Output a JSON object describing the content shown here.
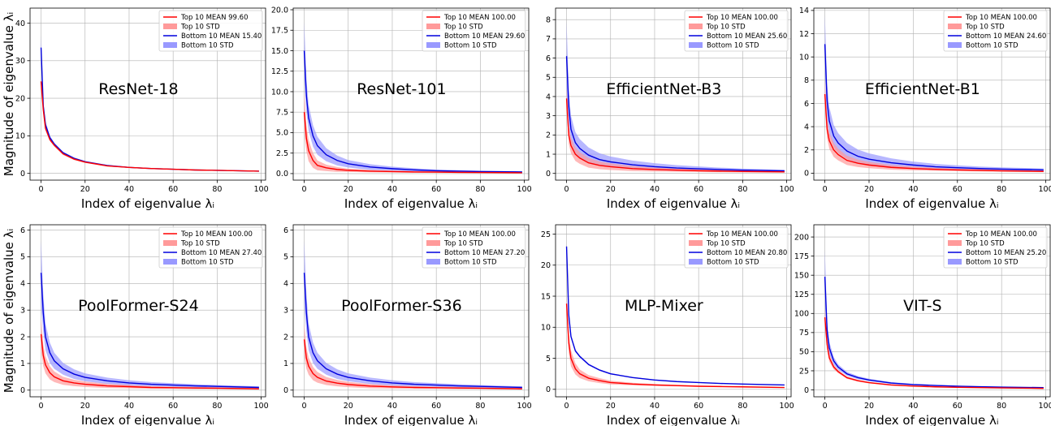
{
  "colors": {
    "top_line": "#ff0000",
    "top_band": "#ff9a9a",
    "bottom_line": "#0000dd",
    "bottom_band": "#9999ff",
    "grid": "#b0b0b0"
  },
  "shared": {
    "xlabel": "Index of eigenvalue λᵢ",
    "ylabel": "Magnitude of eigenvalue λᵢ",
    "xticks": [
      0,
      20,
      40,
      60,
      80,
      100
    ],
    "xlim": [
      -5,
      102
    ],
    "grid": true,
    "legend_position": "top-right"
  },
  "chart_data": [
    {
      "type": "line",
      "title": "ResNet-18",
      "ylim": [
        -1.8,
        44
      ],
      "yticks": [
        0,
        10,
        20,
        30,
        40
      ],
      "legend": [
        "Top 10 MEAN 99.60",
        "Top 10 STD",
        "Bottom 10 MEAN 15.40",
        "Bottom 10 STD"
      ],
      "series": [
        {
          "name": "Top 10 MEAN 99.60",
          "x": [
            0,
            1,
            2,
            4,
            6,
            10,
            15,
            20,
            30,
            40,
            50,
            60,
            70,
            80,
            99
          ],
          "values": [
            24.5,
            17,
            12,
            9,
            7.5,
            5.2,
            3.8,
            3.0,
            2.0,
            1.6,
            1.3,
            1.1,
            0.9,
            0.8,
            0.6
          ],
          "std": [
            0.8,
            0.6,
            0.5,
            0.4,
            0.35,
            0.3,
            0.25,
            0.2,
            0.15,
            0.12,
            0.1,
            0.1,
            0.08,
            0.08,
            0.06
          ]
        },
        {
          "name": "Bottom 10 MEAN 15.40",
          "x": [
            0,
            1,
            2,
            4,
            6,
            10,
            15,
            20,
            30,
            40,
            50,
            60,
            70,
            80,
            99
          ],
          "values": [
            33.5,
            18,
            13,
            9.5,
            7.8,
            5.5,
            4.0,
            3.1,
            2.1,
            1.6,
            1.3,
            1.1,
            0.9,
            0.8,
            0.6
          ],
          "std": [
            3,
            1.2,
            0.8,
            0.5,
            0.4,
            0.3,
            0.25,
            0.2,
            0.15,
            0.12,
            0.1,
            0.1,
            0.08,
            0.08,
            0.06
          ]
        }
      ]
    },
    {
      "type": "line",
      "title": "ResNet-101",
      "ylim": [
        -0.8,
        20.2
      ],
      "yticks": [
        0.0,
        2.5,
        5.0,
        7.5,
        10.0,
        12.5,
        15.0,
        17.5,
        20.0
      ],
      "legend": [
        "Top 10 MEAN 100.00",
        "Top 10 STD",
        "Bottom 10 MEAN 29.60",
        "Bottom 10 STD"
      ],
      "series": [
        {
          "name": "Top 10 MEAN 100.00",
          "x": [
            0,
            1,
            2,
            4,
            6,
            10,
            15,
            20,
            30,
            40,
            50,
            60,
            70,
            80,
            99
          ],
          "values": [
            7.5,
            4.3,
            2.8,
            1.6,
            1.0,
            0.7,
            0.5,
            0.4,
            0.3,
            0.25,
            0.2,
            0.18,
            0.15,
            0.13,
            0.1
          ],
          "std": [
            2.5,
            1.6,
            1.3,
            0.9,
            0.6,
            0.4,
            0.3,
            0.2,
            0.15,
            0.12,
            0.1,
            0.1,
            0.08,
            0.08,
            0.06
          ]
        },
        {
          "name": "Bottom 10 MEAN 29.60",
          "x": [
            0,
            1,
            2,
            4,
            6,
            10,
            15,
            20,
            30,
            40,
            50,
            60,
            70,
            80,
            99
          ],
          "values": [
            15,
            9.5,
            6.8,
            4.6,
            3.4,
            2.3,
            1.6,
            1.2,
            0.8,
            0.6,
            0.45,
            0.35,
            0.3,
            0.25,
            0.2
          ],
          "std": [
            3.5,
            2,
            1.6,
            1.3,
            1.1,
            0.8,
            0.6,
            0.45,
            0.35,
            0.25,
            0.2,
            0.15,
            0.12,
            0.1,
            0.08
          ]
        }
      ]
    },
    {
      "type": "line",
      "title": "EfficientNet-B3",
      "ylim": [
        -0.35,
        8.6
      ],
      "yticks": [
        0,
        1,
        2,
        3,
        4,
        5,
        6,
        7,
        8
      ],
      "legend": [
        "Top 10 MEAN 100.00",
        "Top 10 STD",
        "Bottom 10 MEAN 25.60",
        "Bottom 10 STD"
      ],
      "series": [
        {
          "name": "Top 10 MEAN 100.00",
          "x": [
            0,
            1,
            2,
            4,
            6,
            10,
            15,
            20,
            30,
            40,
            50,
            60,
            70,
            80,
            99
          ],
          "values": [
            3.9,
            2.0,
            1.45,
            1.0,
            0.8,
            0.55,
            0.42,
            0.35,
            0.25,
            0.2,
            0.17,
            0.14,
            0.12,
            0.1,
            0.08
          ],
          "std": [
            0.6,
            0.45,
            0.4,
            0.35,
            0.3,
            0.25,
            0.2,
            0.17,
            0.13,
            0.1,
            0.08,
            0.07,
            0.06,
            0.05,
            0.04
          ]
        },
        {
          "name": "Bottom 10 MEAN 25.60",
          "x": [
            0,
            1,
            2,
            4,
            6,
            10,
            15,
            20,
            30,
            40,
            50,
            60,
            70,
            80,
            99
          ],
          "values": [
            6.1,
            3.5,
            2.3,
            1.6,
            1.3,
            0.95,
            0.72,
            0.6,
            0.45,
            0.35,
            0.28,
            0.24,
            0.2,
            0.17,
            0.13
          ],
          "std": [
            1.8,
            0.9,
            0.7,
            0.55,
            0.48,
            0.4,
            0.33,
            0.28,
            0.22,
            0.18,
            0.15,
            0.12,
            0.1,
            0.08,
            0.06
          ]
        }
      ]
    },
    {
      "type": "line",
      "title": "EfficientNet-B1",
      "ylim": [
        -0.6,
        14.2
      ],
      "yticks": [
        0,
        2,
        4,
        6,
        8,
        10,
        12,
        14
      ],
      "legend": [
        "Top 10 MEAN 100.00",
        "Top 10 STD",
        "Bottom 10 MEAN 24.60",
        "Bottom 10 STD"
      ],
      "series": [
        {
          "name": "Top 10 MEAN 100.00",
          "x": [
            0,
            1,
            2,
            4,
            6,
            10,
            15,
            20,
            30,
            40,
            50,
            60,
            70,
            80,
            99
          ],
          "values": [
            6.8,
            3.8,
            2.8,
            2.0,
            1.6,
            1.1,
            0.85,
            0.7,
            0.5,
            0.4,
            0.33,
            0.28,
            0.24,
            0.2,
            0.15
          ],
          "std": [
            1.2,
            0.8,
            0.7,
            0.6,
            0.5,
            0.4,
            0.32,
            0.27,
            0.2,
            0.16,
            0.13,
            0.11,
            0.1,
            0.08,
            0.06
          ]
        },
        {
          "name": "Bottom 10 MEAN 24.60",
          "x": [
            0,
            1,
            2,
            4,
            6,
            10,
            15,
            20,
            30,
            40,
            50,
            60,
            70,
            80,
            99
          ],
          "values": [
            11.1,
            6.2,
            4.5,
            3.2,
            2.6,
            1.9,
            1.45,
            1.2,
            0.9,
            0.7,
            0.55,
            0.47,
            0.4,
            0.35,
            0.28
          ],
          "std": [
            2.5,
            1.5,
            1.2,
            0.95,
            0.85,
            0.7,
            0.58,
            0.5,
            0.38,
            0.3,
            0.25,
            0.2,
            0.17,
            0.15,
            0.12
          ]
        }
      ]
    },
    {
      "type": "line",
      "title": "PoolFormer-S24",
      "ylim": [
        -0.25,
        6.2
      ],
      "yticks": [
        0,
        1,
        2,
        3,
        4,
        5,
        6
      ],
      "legend": [
        "Top 10 MEAN 100.00",
        "Top 10 STD",
        "Bottom 10 MEAN 27.40",
        "Bottom 10 STD"
      ],
      "series": [
        {
          "name": "Top 10 MEAN 100.00",
          "x": [
            0,
            1,
            2,
            4,
            6,
            10,
            15,
            20,
            30,
            40,
            50,
            60,
            70,
            80,
            99
          ],
          "values": [
            2.1,
            1.3,
            0.95,
            0.65,
            0.5,
            0.35,
            0.27,
            0.22,
            0.16,
            0.13,
            0.1,
            0.09,
            0.08,
            0.07,
            0.05
          ],
          "std": [
            0.6,
            0.4,
            0.32,
            0.25,
            0.2,
            0.15,
            0.12,
            0.1,
            0.08,
            0.06,
            0.05,
            0.04,
            0.04,
            0.03,
            0.03
          ]
        },
        {
          "name": "Bottom 10 MEAN 27.40",
          "x": [
            0,
            1,
            2,
            4,
            6,
            10,
            15,
            20,
            30,
            40,
            50,
            60,
            70,
            80,
            99
          ],
          "values": [
            4.4,
            2.9,
            2.0,
            1.4,
            1.1,
            0.8,
            0.6,
            0.48,
            0.35,
            0.27,
            0.22,
            0.19,
            0.16,
            0.14,
            0.1
          ],
          "std": [
            1.2,
            0.7,
            0.5,
            0.38,
            0.3,
            0.22,
            0.18,
            0.15,
            0.12,
            0.1,
            0.08,
            0.07,
            0.06,
            0.05,
            0.04
          ]
        }
      ]
    },
    {
      "type": "line",
      "title": "PoolFormer-S36",
      "ylim": [
        -0.25,
        6.2
      ],
      "yticks": [
        0,
        1,
        2,
        3,
        4,
        5,
        6
      ],
      "legend": [
        "Top 10 MEAN 100.00",
        "Top 10 STD",
        "Bottom 10 MEAN 27.20",
        "Bottom 10 STD"
      ],
      "series": [
        {
          "name": "Top 10 MEAN 100.00",
          "x": [
            0,
            1,
            2,
            4,
            6,
            10,
            15,
            20,
            30,
            40,
            50,
            60,
            70,
            80,
            99
          ],
          "values": [
            1.9,
            1.2,
            0.9,
            0.62,
            0.48,
            0.34,
            0.26,
            0.21,
            0.15,
            0.12,
            0.1,
            0.09,
            0.08,
            0.07,
            0.05
          ],
          "std": [
            0.6,
            0.4,
            0.32,
            0.25,
            0.2,
            0.15,
            0.12,
            0.1,
            0.08,
            0.06,
            0.05,
            0.04,
            0.04,
            0.03,
            0.03
          ]
        },
        {
          "name": "Bottom 10 MEAN 27.20",
          "x": [
            0,
            1,
            2,
            4,
            6,
            10,
            15,
            20,
            30,
            40,
            50,
            60,
            70,
            80,
            99
          ],
          "values": [
            4.4,
            2.9,
            2.0,
            1.4,
            1.1,
            0.8,
            0.6,
            0.48,
            0.35,
            0.27,
            0.22,
            0.19,
            0.16,
            0.14,
            0.1
          ],
          "std": [
            1.2,
            0.7,
            0.5,
            0.38,
            0.3,
            0.22,
            0.18,
            0.15,
            0.12,
            0.1,
            0.08,
            0.07,
            0.06,
            0.05,
            0.04
          ]
        }
      ]
    },
    {
      "type": "line",
      "title": "MLP-Mixer",
      "ylim": [
        -1.2,
        26.5
      ],
      "yticks": [
        0,
        5,
        10,
        15,
        20,
        25
      ],
      "legend": [
        "Top 10 MEAN 100.00",
        "Top 10 STD",
        "Bottom 10 MEAN 20.80",
        "Bottom 10 STD"
      ],
      "series": [
        {
          "name": "Top 10 MEAN 100.00",
          "x": [
            0,
            1,
            2,
            4,
            6,
            10,
            15,
            20,
            30,
            40,
            50,
            60,
            70,
            80,
            99
          ],
          "values": [
            13.8,
            7.5,
            5.0,
            3.3,
            2.5,
            1.8,
            1.4,
            1.1,
            0.85,
            0.7,
            0.6,
            0.5,
            0.45,
            0.4,
            0.3
          ],
          "std": [
            1.5,
            1.6,
            1.3,
            0.9,
            0.7,
            0.5,
            0.4,
            0.3,
            0.2,
            0.15,
            0.12,
            0.1,
            0.08,
            0.07,
            0.05
          ]
        },
        {
          "name": "Bottom 10 MEAN 20.80",
          "x": [
            0,
            1,
            2,
            4,
            6,
            10,
            15,
            20,
            30,
            40,
            50,
            60,
            70,
            80,
            99
          ],
          "values": [
            23,
            12,
            8.5,
            6.2,
            5.3,
            4.0,
            3.1,
            2.5,
            1.9,
            1.5,
            1.25,
            1.1,
            0.95,
            0.85,
            0.7
          ],
          "std": [
            0.5,
            0.3,
            0.25,
            0.2,
            0.18,
            0.15,
            0.12,
            0.1,
            0.08,
            0.07,
            0.06,
            0.05,
            0.05,
            0.04,
            0.04
          ]
        }
      ]
    },
    {
      "type": "line",
      "title": "VIT-S",
      "ylim": [
        -9,
        216
      ],
      "yticks": [
        0,
        25,
        50,
        75,
        100,
        125,
        150,
        175,
        200
      ],
      "legend": [
        "Top 10 MEAN 100.00",
        "Top 10 STD",
        "Bottom 10 MEAN 25.20",
        "Bottom 10 STD"
      ],
      "series": [
        {
          "name": "Top 10 MEAN 100.00",
          "x": [
            0,
            1,
            2,
            4,
            6,
            10,
            15,
            20,
            30,
            40,
            50,
            60,
            70,
            80,
            99
          ],
          "values": [
            95,
            60,
            42,
            30,
            24,
            16,
            12,
            9.5,
            6.5,
            5,
            4,
            3.4,
            3,
            2.6,
            2
          ],
          "std": [
            12,
            8,
            5,
            3,
            2,
            1.5,
            1.2,
            1,
            0.8,
            0.6,
            0.5,
            0.4,
            0.35,
            0.3,
            0.25
          ]
        },
        {
          "name": "Bottom 10 MEAN 25.20",
          "x": [
            0,
            1,
            2,
            4,
            6,
            10,
            15,
            20,
            30,
            40,
            50,
            60,
            70,
            80,
            99
          ],
          "values": [
            148,
            78,
            55,
            38,
            30,
            21,
            16,
            13,
            9,
            7,
            5.8,
            4.9,
            4.2,
            3.7,
            3
          ],
          "std": [
            35,
            12,
            8,
            5,
            3.5,
            2.5,
            2,
            1.6,
            1.2,
            0.9,
            0.7,
            0.6,
            0.5,
            0.45,
            0.35
          ]
        }
      ]
    }
  ]
}
